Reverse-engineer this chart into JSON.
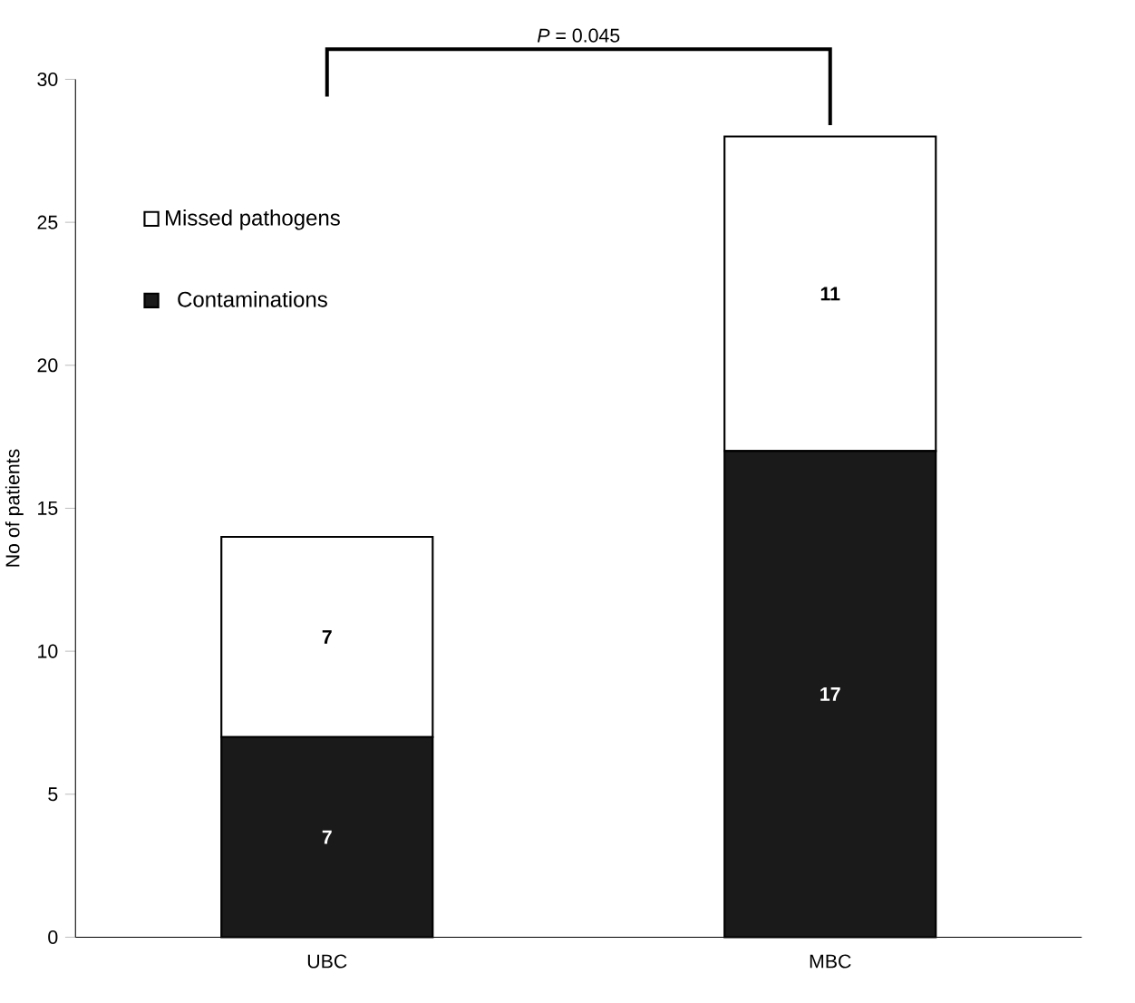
{
  "chart_data": {
    "type": "bar",
    "stacked": true,
    "categories": [
      "UBC",
      "MBC"
    ],
    "series": [
      {
        "name": "Contaminations",
        "color": "#1a1a1a",
        "values": [
          7,
          17
        ]
      },
      {
        "name": "Missed pathogens",
        "color": "#ffffff",
        "values": [
          7,
          11
        ]
      }
    ],
    "ylabel": "No of patients",
    "ylim": [
      0,
      30
    ],
    "yticks": [
      0,
      5,
      10,
      15,
      20,
      25,
      30
    ],
    "legend": "top left",
    "data_labels": true,
    "grid": false,
    "annotations": [
      "*P* = 0.045"
    ]
  }
}
